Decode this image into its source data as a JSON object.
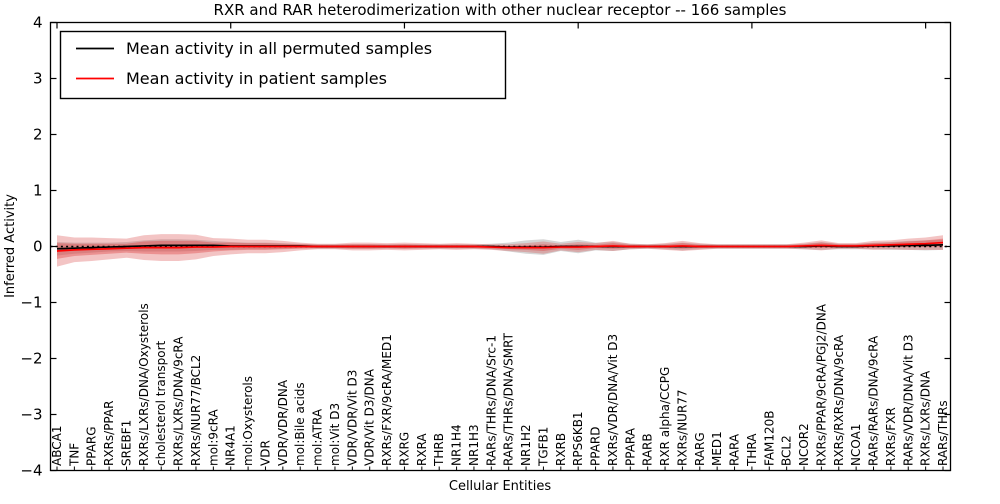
{
  "title": "RXR and RAR heterodimerization with other nuclear receptor -- 166 samples",
  "axes": {
    "xlabel": "Cellular Entities",
    "ylabel": "Inferred Activity",
    "yticks": [
      "4",
      "3",
      "2",
      "1",
      "0",
      "−1",
      "−2",
      "−3",
      "−4"
    ],
    "ytick_values": [
      4,
      3,
      2,
      1,
      0,
      -1,
      -2,
      -3,
      -4
    ]
  },
  "legend": {
    "items": [
      {
        "label": "Mean activity in all permuted samples",
        "color": "#000000"
      },
      {
        "label": "Mean activity in patient samples",
        "color": "#ff0000"
      }
    ]
  },
  "colors": {
    "patient_band": "#dd5555",
    "patient_band_inner": "#dd3333",
    "permuted_band": "#888888",
    "frame": "#000000",
    "background": "#ffffff"
  },
  "chart_data": {
    "type": "line",
    "title": "RXR and RAR heterodimerization with other nuclear receptor -- 166 samples",
    "xlabel": "Cellular Entities",
    "ylabel": "Inferred Activity",
    "ylim": [
      -4,
      4
    ],
    "grid": false,
    "legend_position": "upper left",
    "zero_line": {
      "style": "dotted",
      "color": "#000000",
      "y": 0
    },
    "categories": [
      "ABCA1",
      "TNF",
      "PPARG",
      "RXRs/PPAR",
      "SREBF1",
      "RXRs/LXRs/DNA/Oxysterols",
      "cholesterol transport",
      "RXRs/LXRs/DNA/9cRA",
      "RXRs/NUR77/BCL2",
      "mol:9cRA",
      "NR4A1",
      "mol:Oxysterols",
      "VDR",
      "VDR/VDR/DNA",
      "mol:Bile acids",
      "mol:ATRA",
      "mol:Vit D3",
      "VDR/VDR/Vit D3",
      "VDR/Vit D3/DNA",
      "RXRs/FXR/9cRA/MED1",
      "RXRG",
      "RXRA",
      "THRB",
      "NR1H4",
      "NR1H3",
      "RARs/THRs/DNA/Src-1",
      "RARs/THRs/DNA/SMRT",
      "NR1H2",
      "TGFB1",
      "RXRB",
      "RPS6KB1",
      "PPARD",
      "RXRs/VDR/DNA/Vit D3",
      "PPARA",
      "RARB",
      "RXR alpha/CCPG",
      "RXRs/NUR77",
      "RARG",
      "MED1",
      "RARA",
      "THRA",
      "FAM120B",
      "BCL2",
      "NCOR2",
      "RXRs/PPAR/9cRA/PGJ2/DNA",
      "RXRs/RXRs/DNA/9cRA",
      "NCOA1",
      "RARs/RARs/DNA/9cRA",
      "RXRs/FXR",
      "RARs/VDR/DNA/Vit D3",
      "RXRs/LXRs/DNA",
      "RARs/THRs"
    ],
    "series": [
      {
        "name": "Mean activity in all permuted samples",
        "color": "#000000",
        "values": [
          -0.04,
          -0.03,
          -0.02,
          -0.01,
          0,
          0.01,
          0.02,
          0.02,
          0.02,
          0.02,
          0.01,
          0.01,
          0.01,
          0.01,
          0.01,
          0,
          0,
          0,
          0,
          0,
          0,
          0,
          0,
          0,
          0,
          0,
          -0.01,
          -0.01,
          -0.01,
          0,
          0,
          0,
          0,
          0,
          0,
          0,
          0,
          0,
          0,
          0,
          0,
          0,
          0,
          0,
          0.01,
          0,
          0,
          0.01,
          0.01,
          0.02,
          0.02,
          0.03
        ]
      },
      {
        "name": "Mean activity in patient samples",
        "color": "#ff0000",
        "values": [
          -0.08,
          -0.06,
          -0.05,
          -0.04,
          -0.03,
          -0.02,
          -0.02,
          -0.02,
          -0.01,
          -0.01,
          0,
          0,
          0,
          0,
          0,
          0,
          0,
          0,
          0,
          0,
          0,
          0,
          0,
          0,
          0,
          -0.01,
          -0.02,
          -0.02,
          -0.02,
          -0.01,
          -0.01,
          0,
          0.01,
          0,
          0,
          0,
          0.01,
          0,
          0,
          0,
          0,
          0,
          0,
          0.01,
          0.02,
          0.01,
          0.01,
          0.02,
          0.03,
          0.04,
          0.05,
          0.07
        ]
      }
    ],
    "bands": [
      {
        "name": "permuted-spread",
        "center": "permuted",
        "color": "#888888",
        "opacity": 0.35,
        "half_widths": [
          0.12,
          0.1,
          0.09,
          0.08,
          0.08,
          0.1,
          0.11,
          0.11,
          0.1,
          0.08,
          0.07,
          0.06,
          0.06,
          0.05,
          0.04,
          0.04,
          0.04,
          0.04,
          0.04,
          0.04,
          0.04,
          0.04,
          0.04,
          0.04,
          0.04,
          0.05,
          0.08,
          0.12,
          0.14,
          0.08,
          0.12,
          0.07,
          0.08,
          0.05,
          0.04,
          0.05,
          0.07,
          0.05,
          0.04,
          0.04,
          0.04,
          0.04,
          0.04,
          0.05,
          0.07,
          0.05,
          0.05,
          0.06,
          0.07,
          0.08,
          0.09,
          0.09
        ]
      },
      {
        "name": "patient-spread-outer",
        "center": "patient",
        "color": "#dd5555",
        "opacity": 0.35,
        "half_widths": [
          0.28,
          0.22,
          0.21,
          0.19,
          0.17,
          0.22,
          0.24,
          0.24,
          0.22,
          0.16,
          0.14,
          0.12,
          0.12,
          0.1,
          0.07,
          0.05,
          0.05,
          0.07,
          0.07,
          0.06,
          0.07,
          0.06,
          0.05,
          0.06,
          0.05,
          0.05,
          0.06,
          0.08,
          0.11,
          0.06,
          0.09,
          0.06,
          0.09,
          0.05,
          0.04,
          0.06,
          0.09,
          0.06,
          0.04,
          0.04,
          0.04,
          0.04,
          0.04,
          0.06,
          0.09,
          0.05,
          0.05,
          0.08,
          0.08,
          0.1,
          0.11,
          0.13
        ]
      },
      {
        "name": "patient-spread-inner",
        "center": "patient",
        "color": "#dd3333",
        "opacity": 0.35,
        "half_widths": [
          0.14,
          0.11,
          0.1,
          0.09,
          0.08,
          0.11,
          0.12,
          0.12,
          0.11,
          0.08,
          0.07,
          0.06,
          0.06,
          0.05,
          0.04,
          0.03,
          0.03,
          0.04,
          0.04,
          0.03,
          0.04,
          0.03,
          0.03,
          0.03,
          0.03,
          0.03,
          0.03,
          0.04,
          0.06,
          0.03,
          0.05,
          0.03,
          0.05,
          0.03,
          0.02,
          0.03,
          0.05,
          0.03,
          0.02,
          0.02,
          0.02,
          0.02,
          0.02,
          0.03,
          0.05,
          0.03,
          0.03,
          0.04,
          0.04,
          0.05,
          0.06,
          0.07
        ]
      }
    ]
  }
}
